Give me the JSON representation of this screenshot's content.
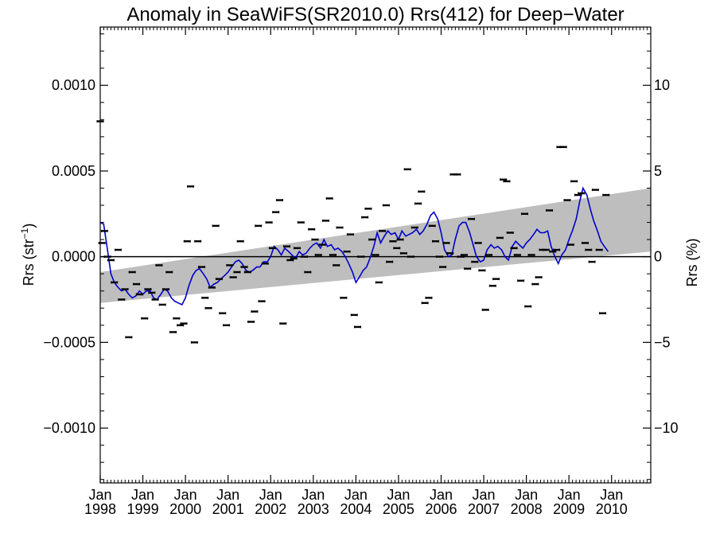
{
  "chart_data": {
    "type": "scatter",
    "title": "Anomaly in SeaWiFS(SR2010.0) Rrs(412) for Deep−Water",
    "ylabel": "Rrs (str",
    "ylabel_sup": "−1",
    "ylabel_close": ")",
    "y2label": "Rrs (%)",
    "xlim": [
      1998.0,
      2010.92
    ],
    "ylim": [
      -0.00132,
      0.00134
    ],
    "y2lim": [
      -13.2,
      13.4
    ],
    "grid": false,
    "legend": "none",
    "colors": {
      "running_mean": "#0000cc",
      "trend_band": "#bebebe",
      "points": "#000000",
      "zero_line": "#000000"
    },
    "y_ticks": [
      {
        "value": 0.001,
        "label": "0.0010"
      },
      {
        "value": 0.0005,
        "label": "0.0005"
      },
      {
        "value": 0.0,
        "label": "0.0000"
      },
      {
        "value": -0.0005,
        "label": "−0.0005"
      },
      {
        "value": -0.001,
        "label": "−0.0010"
      }
    ],
    "y2_ticks": [
      {
        "value": 10,
        "label": "10"
      },
      {
        "value": 5,
        "label": "5"
      },
      {
        "value": 0,
        "label": "0"
      },
      {
        "value": -5,
        "label": "−5"
      },
      {
        "value": -10,
        "label": "−10"
      }
    ],
    "x_ticks": [
      {
        "value": 1998,
        "month": "Jan",
        "year": "1998"
      },
      {
        "value": 1999,
        "month": "Jan",
        "year": "1999"
      },
      {
        "value": 2000,
        "month": "Jan",
        "year": "2000"
      },
      {
        "value": 2001,
        "month": "Jan",
        "year": "2001"
      },
      {
        "value": 2002,
        "month": "Jan",
        "year": "2002"
      },
      {
        "value": 2003,
        "month": "Jan",
        "year": "2003"
      },
      {
        "value": 2004,
        "month": "Jan",
        "year": "2004"
      },
      {
        "value": 2005,
        "month": "Jan",
        "year": "2005"
      },
      {
        "value": 2006,
        "month": "Jan",
        "year": "2006"
      },
      {
        "value": 2007,
        "month": "Jan",
        "year": "2007"
      },
      {
        "value": 2008,
        "month": "Jan",
        "year": "2008"
      },
      {
        "value": 2009,
        "month": "Jan",
        "year": "2009"
      },
      {
        "value": 2010,
        "month": "Jan",
        "year": "2010"
      }
    ],
    "trend_band": {
      "x": [
        1998.0,
        2010.92
      ],
      "upper": [
        -9e-05,
        0.0004
      ],
      "lower": [
        -0.00027,
        3e-05
      ]
    },
    "points": [
      [
        1998.0,
        0.00079
      ],
      [
        1998.04,
        8e-05
      ],
      [
        1998.1,
        0.00015
      ],
      [
        1998.17,
        0.0
      ],
      [
        1998.25,
        -2e-05
      ],
      [
        1998.33,
        -0.00015
      ],
      [
        1998.42,
        4e-05
      ],
      [
        1998.5,
        -0.00025
      ],
      [
        1998.58,
        -0.00019
      ],
      [
        1998.67,
        -0.00047
      ],
      [
        1998.75,
        -9e-05
      ],
      [
        1998.85,
        -0.00016
      ],
      [
        1998.92,
        -0.00022
      ],
      [
        1999.04,
        -0.00036
      ],
      [
        1999.12,
        -0.00019
      ],
      [
        1999.21,
        -0.00021
      ],
      [
        1999.29,
        -0.00025
      ],
      [
        1999.38,
        -5e-05
      ],
      [
        1999.46,
        -0.00028
      ],
      [
        1999.54,
        -0.00019
      ],
      [
        1999.62,
        -9e-05
      ],
      [
        1999.71,
        -0.00044
      ],
      [
        1999.79,
        -0.00036
      ],
      [
        1999.88,
        -0.0004
      ],
      [
        1999.96,
        -0.00039
      ],
      [
        2000.04,
        9e-05
      ],
      [
        2000.12,
        0.00041
      ],
      [
        2000.21,
        -0.0005
      ],
      [
        2000.29,
        9e-05
      ],
      [
        2000.38,
        -6e-05
      ],
      [
        2000.46,
        -0.00024
      ],
      [
        2000.54,
        -0.0003
      ],
      [
        2000.62,
        -0.00018
      ],
      [
        2000.71,
        0.00018
      ],
      [
        2000.79,
        -0.00013
      ],
      [
        2000.87,
        -0.00033
      ],
      [
        2000.96,
        -0.0004
      ],
      [
        2001.04,
        -5e-05
      ],
      [
        2001.12,
        -0.00012
      ],
      [
        2001.21,
        -9e-05
      ],
      [
        2001.29,
        9e-05
      ],
      [
        2001.38,
        -6e-05
      ],
      [
        2001.46,
        -9e-05
      ],
      [
        2001.54,
        -0.00038
      ],
      [
        2001.62,
        -0.00032
      ],
      [
        2001.71,
        0.00018
      ],
      [
        2001.79,
        -0.00026
      ],
      [
        2001.87,
        -4e-05
      ],
      [
        2001.96,
        0.0002
      ],
      [
        2002.04,
        5e-05
      ],
      [
        2002.12,
        0.00026
      ],
      [
        2002.21,
        0.00033
      ],
      [
        2002.29,
        -0.00039
      ],
      [
        2002.38,
        6e-05
      ],
      [
        2002.46,
        -2e-05
      ],
      [
        2002.54,
        -1e-05
      ],
      [
        2002.62,
        5e-05
      ],
      [
        2002.71,
        0.0002
      ],
      [
        2002.79,
        0.0
      ],
      [
        2002.87,
        -9e-05
      ],
      [
        2002.96,
        0.00016
      ],
      [
        2003.04,
        0.0001
      ],
      [
        2003.12,
        1e-05
      ],
      [
        2003.21,
        7e-05
      ],
      [
        2003.29,
        0.00021
      ],
      [
        2003.38,
        0.00034
      ],
      [
        2003.46,
        1e-05
      ],
      [
        2003.54,
        -5e-05
      ],
      [
        2003.62,
        0.00017
      ],
      [
        2003.71,
        -0.00024
      ],
      [
        2003.79,
        3e-05
      ],
      [
        2003.87,
        0.00013
      ],
      [
        2003.96,
        -0.00034
      ],
      [
        2004.04,
        -0.00041
      ],
      [
        2004.12,
        0.0
      ],
      [
        2004.21,
        0.00023
      ],
      [
        2004.29,
        0.00028
      ],
      [
        2004.38,
        0.0001
      ],
      [
        2004.46,
        1e-05
      ],
      [
        2004.54,
        -0.00015
      ],
      [
        2004.62,
        0.00015
      ],
      [
        2004.71,
        0.0003
      ],
      [
        2004.79,
        -3e-05
      ],
      [
        2004.87,
        9e-05
      ],
      [
        2004.96,
        5e-05
      ],
      [
        2005.04,
        0.0001
      ],
      [
        2005.12,
        2e-05
      ],
      [
        2005.21,
        0.00051
      ],
      [
        2005.29,
        0.0
      ],
      [
        2005.38,
        0.00017
      ],
      [
        2005.46,
        0.00031
      ],
      [
        2005.54,
        0.00038
      ],
      [
        2005.62,
        -0.00027
      ],
      [
        2005.71,
        -0.00024
      ],
      [
        2005.79,
        0.00018
      ],
      [
        2005.87,
        9e-05
      ],
      [
        2005.96,
        0.0
      ],
      [
        2006.04,
        -6e-05
      ],
      [
        2006.12,
        8e-05
      ],
      [
        2006.21,
        2e-05
      ],
      [
        2006.29,
        0.00048
      ],
      [
        2006.38,
        0.00048
      ],
      [
        2006.46,
        0.0
      ],
      [
        2006.54,
        1e-05
      ],
      [
        2006.62,
        -7e-05
      ],
      [
        2006.71,
        0.00022
      ],
      [
        2006.79,
        -3e-05
      ],
      [
        2006.87,
        8e-05
      ],
      [
        2006.96,
        -8e-05
      ],
      [
        2007.04,
        -0.00031
      ],
      [
        2007.12,
        1e-05
      ],
      [
        2007.21,
        -0.00017
      ],
      [
        2007.29,
        -0.00013
      ],
      [
        2007.38,
        0.00011
      ],
      [
        2007.46,
        0.00045
      ],
      [
        2007.54,
        0.00044
      ],
      [
        2007.62,
        0.00014
      ],
      [
        2007.71,
        5e-05
      ],
      [
        2007.79,
        1e-05
      ],
      [
        2007.87,
        -0.00014
      ],
      [
        2007.96,
        0.00025
      ],
      [
        2008.04,
        -0.00029
      ],
      [
        2008.12,
        1e-05
      ],
      [
        2008.21,
        -0.00016
      ],
      [
        2008.29,
        -0.00012
      ],
      [
        2008.38,
        4e-05
      ],
      [
        2008.46,
        4e-05
      ],
      [
        2008.54,
        0.00027
      ],
      [
        2008.62,
        3e-05
      ],
      [
        2008.71,
        4e-05
      ],
      [
        2008.79,
        0.00064
      ],
      [
        2008.87,
        0.00064
      ],
      [
        2008.96,
        0.00033
      ],
      [
        2009.04,
        7e-05
      ],
      [
        2009.12,
        0.00044
      ],
      [
        2009.21,
        0.00036
      ],
      [
        2009.29,
        0.00037
      ],
      [
        2009.38,
        8e-05
      ],
      [
        2009.46,
        4e-05
      ],
      [
        2009.54,
        -3e-05
      ],
      [
        2009.62,
        0.00039
      ],
      [
        2009.71,
        4e-05
      ],
      [
        2009.79,
        -0.00033
      ],
      [
        2009.87,
        0.00036
      ]
    ],
    "running_mean": {
      "x": [
        1998.0,
        1998.08,
        1998.17,
        1998.25,
        1998.33,
        1998.42,
        1998.5,
        1998.58,
        1998.67,
        1998.75,
        1998.83,
        1998.92,
        1999.0,
        1999.08,
        1999.17,
        1999.25,
        1999.33,
        1999.42,
        1999.5,
        1999.58,
        1999.67,
        1999.75,
        1999.83,
        1999.92,
        2000.0,
        2000.08,
        2000.17,
        2000.25,
        2000.33,
        2000.42,
        2000.5,
        2000.58,
        2000.67,
        2000.75,
        2000.83,
        2000.92,
        2001.0,
        2001.08,
        2001.17,
        2001.25,
        2001.33,
        2001.42,
        2001.5,
        2001.58,
        2001.67,
        2001.75,
        2001.83,
        2001.92,
        2002.0,
        2002.08,
        2002.17,
        2002.25,
        2002.33,
        2002.42,
        2002.5,
        2002.58,
        2002.67,
        2002.75,
        2002.83,
        2002.92,
        2003.0,
        2003.08,
        2003.17,
        2003.25,
        2003.33,
        2003.42,
        2003.5,
        2003.58,
        2003.67,
        2003.75,
        2003.83,
        2003.92,
        2004.0,
        2004.08,
        2004.17,
        2004.25,
        2004.33,
        2004.42,
        2004.5,
        2004.58,
        2004.67,
        2004.75,
        2004.83,
        2004.92,
        2005.0,
        2005.08,
        2005.17,
        2005.25,
        2005.33,
        2005.42,
        2005.5,
        2005.58,
        2005.67,
        2005.75,
        2005.83,
        2005.92,
        2006.0,
        2006.08,
        2006.17,
        2006.25,
        2006.33,
        2006.42,
        2006.5,
        2006.58,
        2006.67,
        2006.75,
        2006.83,
        2006.92,
        2007.0,
        2007.08,
        2007.17,
        2007.25,
        2007.33,
        2007.42,
        2007.5,
        2007.58,
        2007.67,
        2007.75,
        2007.83,
        2007.92,
        2008.0,
        2008.08,
        2008.17,
        2008.25,
        2008.33,
        2008.42,
        2008.5,
        2008.58,
        2008.67,
        2008.75,
        2008.83,
        2008.92,
        2009.0,
        2009.08,
        2009.17,
        2009.25,
        2009.33,
        2009.42,
        2009.5,
        2009.58,
        2009.67,
        2009.75,
        2009.83,
        2009.92
      ],
      "y": [
        0.0002,
        0.00019,
        4e-05,
        -0.0001,
        -0.00015,
        -0.00018,
        -0.0002,
        -0.00019,
        -0.00022,
        -0.00024,
        -0.00023,
        -0.0002,
        -0.00022,
        -0.0002,
        -0.0002,
        -0.00024,
        -0.00025,
        -0.00022,
        -0.00019,
        -0.0002,
        -0.00024,
        -0.00026,
        -0.00027,
        -0.00028,
        -0.00024,
        -0.00017,
        -0.00011,
        -8e-05,
        -7e-05,
        -0.0001,
        -0.00013,
        -0.00018,
        -0.00016,
        -0.00015,
        -0.00013,
        -0.00011,
        -9e-05,
        -6e-05,
        -3e-05,
        -2e-05,
        -4e-05,
        -8e-05,
        -9e-05,
        -8e-05,
        -6e-05,
        -6e-05,
        -3e-05,
        -3e-05,
        0.0,
        6e-05,
        4e-05,
        1e-05,
        5e-05,
        3e-05,
        1e-05,
        -1e-05,
        3e-05,
        1e-05,
        2e-05,
        5e-05,
        7e-05,
        8e-05,
        5e-05,
        0.0001,
        6e-05,
        7e-05,
        4e-05,
        5e-05,
        3e-05,
        0.0,
        -4e-05,
        -9e-05,
        -0.00015,
        -0.00012,
        -8e-05,
        -6e-05,
        -1e-05,
        6e-05,
        0.00014,
        8e-05,
        0.00012,
        0.00015,
        0.00013,
        0.00014,
        0.0001,
        0.00015,
        0.00012,
        0.00013,
        0.00014,
        0.00016,
        0.00013,
        0.00015,
        0.00019,
        0.00024,
        0.00026,
        0.00022,
        0.00014,
        4e-05,
        0.0,
        1e-05,
        0.0001,
        0.00018,
        0.0002,
        0.0002,
        0.00014,
        7e-05,
        0.0,
        -3e-05,
        -2e-05,
        4e-05,
        7e-05,
        5e-05,
        6e-05,
        4e-05,
        0.0,
        -2e-05,
        6e-05,
        9e-05,
        7e-05,
        5e-05,
        8e-05,
        0.0001,
        0.00013,
        0.00016,
        0.00014,
        0.00014,
        0.00015,
        6e-05,
        0.0,
        -4e-05,
        1e-05,
        4e-05,
        0.0001,
        0.00015,
        0.00022,
        0.00032,
        0.0004,
        0.00036,
        0.00028,
        0.00021,
        0.00015,
        9e-05,
        6e-05,
        3e-05
      ]
    }
  }
}
